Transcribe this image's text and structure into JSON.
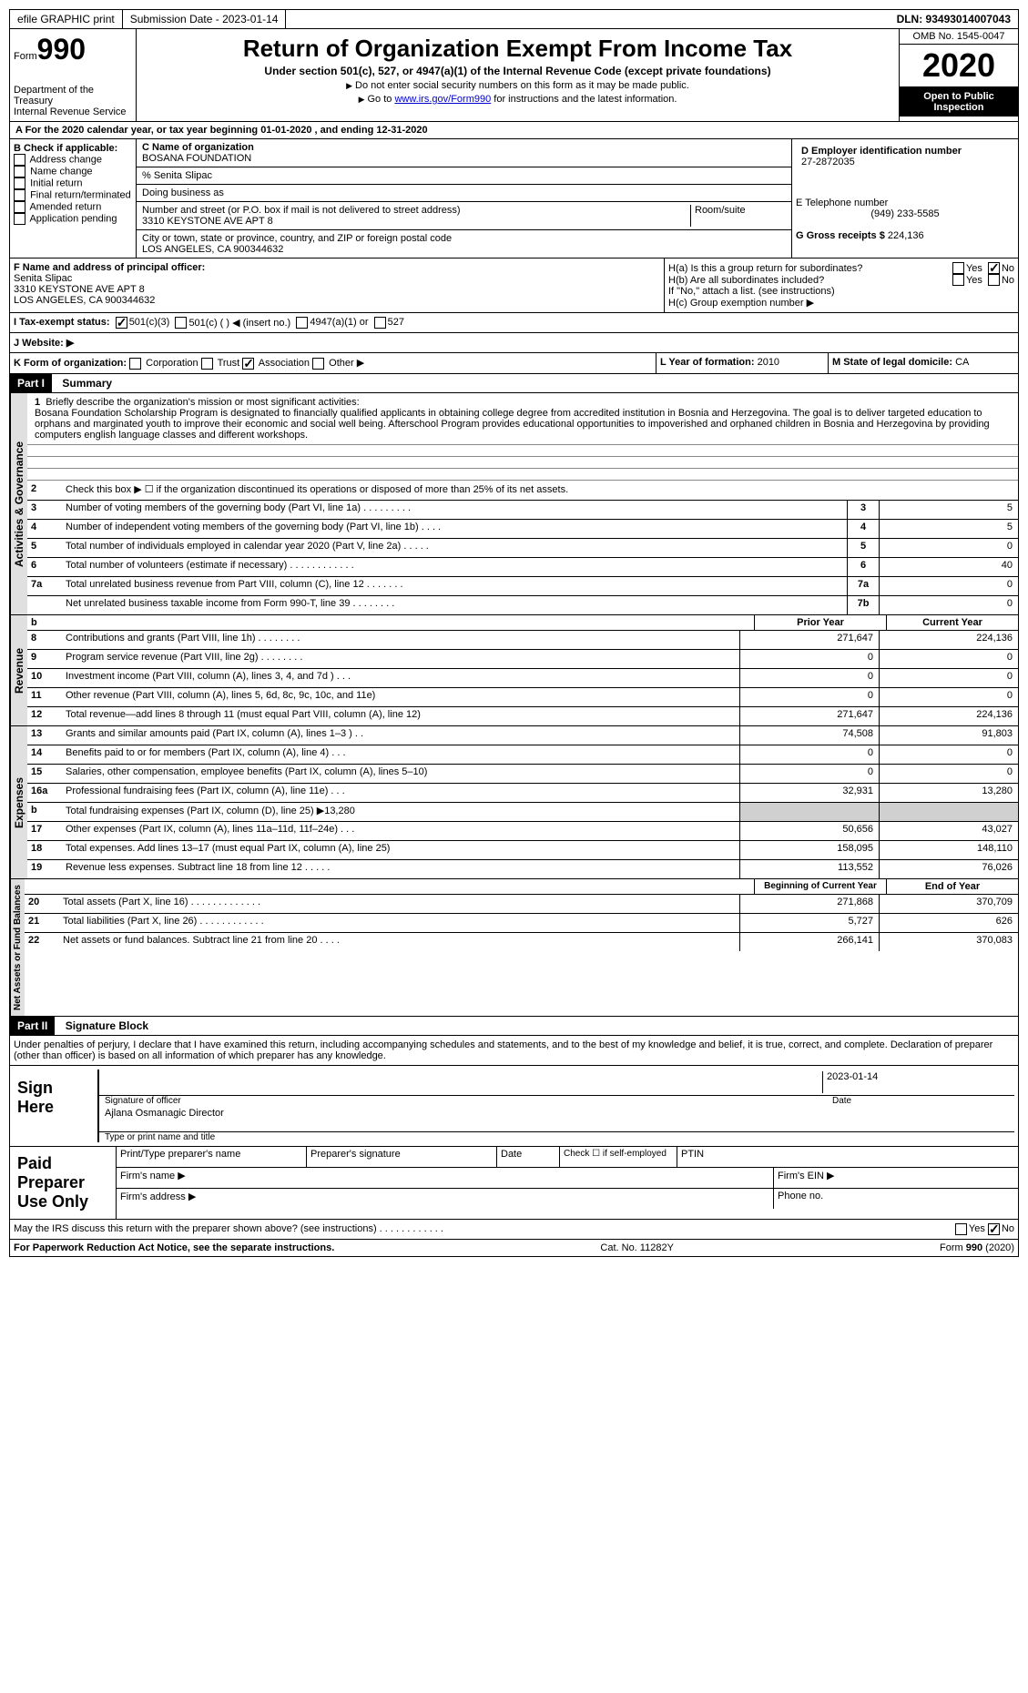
{
  "topbar": {
    "efile": "efile GRAPHIC print",
    "submission": "Submission Date - 2023-01-14",
    "dln": "DLN: 93493014007043"
  },
  "header": {
    "form_word": "Form",
    "form_num": "990",
    "dept": "Department of the Treasury\nInternal Revenue Service",
    "title": "Return of Organization Exempt From Income Tax",
    "subtitle": "Under section 501(c), 527, or 4947(a)(1) of the Internal Revenue Code (except private foundations)",
    "note1": "Do not enter social security numbers on this form as it may be made public.",
    "note2_pre": "Go to ",
    "note2_link": "www.irs.gov/Form990",
    "note2_post": " for instructions and the latest information.",
    "omb": "OMB No. 1545-0047",
    "year": "2020",
    "open": "Open to Public Inspection"
  },
  "sectionA": {
    "a_label": "A For the 2020 calendar year, or tax year beginning 01-01-2020   , and ending 12-31-2020",
    "b_label": "B Check if applicable:",
    "b_items": [
      "Address change",
      "Name change",
      "Initial return",
      "Final return/terminated",
      "Amended return",
      "Application pending"
    ],
    "c_label": "C Name of organization",
    "c_name": "BOSANA FOUNDATION",
    "c_care": "% Senita Slipac",
    "c_dba": "Doing business as",
    "c_street_label": "Number and street (or P.O. box if mail is not delivered to street address)",
    "c_street": "3310 KEYSTONE AVE APT 8",
    "c_room": "Room/suite",
    "c_city_label": "City or town, state or province, country, and ZIP or foreign postal code",
    "c_city": "LOS ANGELES, CA  900344632",
    "d_label": "D Employer identification number",
    "d_val": "27-2872035",
    "e_label": "E Telephone number",
    "e_val": "(949) 233-5585",
    "g_label": "G Gross receipts $",
    "g_val": "224,136",
    "f_label": "F Name and address of principal officer:",
    "f_name": "Senita Slipac",
    "f_addr1": "3310 KEYSTONE AVE APT 8",
    "f_addr2": "LOS ANGELES, CA  900344632",
    "ha": "H(a)  Is this a group return for subordinates?",
    "hb": "H(b)  Are all subordinates included?",
    "hb_note": "If \"No,\" attach a list. (see instructions)",
    "hc": "H(c)  Group exemption number ▶",
    "yes": "Yes",
    "no": "No",
    "i_label": "I   Tax-exempt status:",
    "i_501c3": "501(c)(3)",
    "i_501c": "501(c) (  ) ◀ (insert no.)",
    "i_4947": "4947(a)(1) or",
    "i_527": "527",
    "j_label": "J  Website: ▶",
    "k_label": "K Form of organization:",
    "k_corp": "Corporation",
    "k_trust": "Trust",
    "k_assoc": "Association",
    "k_other": "Other ▶",
    "l_label": "L Year of formation:",
    "l_val": "2010",
    "m_label": "M State of legal domicile:",
    "m_val": "CA"
  },
  "part1": {
    "label": "Part I",
    "title": "Summary",
    "q1_label": "1",
    "q1_text": "Briefly describe the organization's mission or most significant activities:",
    "mission": "Bosana Foundation Scholarship Program is designated to financially qualified applicants in obtaining college degree from accredited institution in Bosnia and Herzegovina. The goal is to deliver targeted education to orphans and marginated youth to improve their economic and social well being. Afterschool Program provides educational opportunities to impoverished and orphaned children in Bosnia and Herzegovina by providing computers english language classes and different workshops.",
    "q2": "Check this box ▶ ☐  if the organization discontinued its operations or disposed of more than 25% of its net assets.",
    "sections": {
      "gov": "Activities & Governance",
      "rev": "Revenue",
      "exp": "Expenses",
      "net": "Net Assets or Fund Balances"
    },
    "lines_gov": [
      {
        "n": "3",
        "d": "Number of voting members of the governing body (Part VI, line 1a)   .    .    .    .    .    .    .    .    .",
        "b": "3",
        "v": "5"
      },
      {
        "n": "4",
        "d": "Number of independent voting members of the governing body (Part VI, line 1b)    .    .    .    .",
        "b": "4",
        "v": "5"
      },
      {
        "n": "5",
        "d": "Total number of individuals employed in calendar year 2020 (Part V, line 2a)   .    .    .    .    .",
        "b": "5",
        "v": "0"
      },
      {
        "n": "6",
        "d": "Total number of volunteers (estimate if necessary)    .    .    .    .    .    .    .    .    .    .    .    .",
        "b": "6",
        "v": "40"
      },
      {
        "n": "7a",
        "d": "Total unrelated business revenue from Part VIII, column (C), line 12   .    .    .    .    .    .    .",
        "b": "7a",
        "v": "0"
      },
      {
        "n": "",
        "d": "Net unrelated business taxable income from Form 990-T, line 39    .    .    .    .    .    .    .    .",
        "b": "7b",
        "v": "0"
      }
    ],
    "prior": "Prior Year",
    "current": "Current Year",
    "lines_rev": [
      {
        "n": "8",
        "d": "Contributions and grants (Part VIII, line 1h)    .    .    .    .    .    .    .    .",
        "p": "271,647",
        "c": "224,136"
      },
      {
        "n": "9",
        "d": "Program service revenue (Part VIII, line 2g)    .    .    .    .    .    .    .    .",
        "p": "0",
        "c": "0"
      },
      {
        "n": "10",
        "d": "Investment income (Part VIII, column (A), lines 3, 4, and 7d )    .    .    .",
        "p": "0",
        "c": "0"
      },
      {
        "n": "11",
        "d": "Other revenue (Part VIII, column (A), lines 5, 6d, 8c, 9c, 10c, and 11e)",
        "p": "0",
        "c": "0"
      },
      {
        "n": "12",
        "d": "Total revenue—add lines 8 through 11 (must equal Part VIII, column (A), line 12)",
        "p": "271,647",
        "c": "224,136"
      }
    ],
    "lines_exp": [
      {
        "n": "13",
        "d": "Grants and similar amounts paid (Part IX, column (A), lines 1–3 )  .    .",
        "p": "74,508",
        "c": "91,803"
      },
      {
        "n": "14",
        "d": "Benefits paid to or for members (Part IX, column (A), line 4)    .    .    .",
        "p": "0",
        "c": "0"
      },
      {
        "n": "15",
        "d": "Salaries, other compensation, employee benefits (Part IX, column (A), lines 5–10)",
        "p": "0",
        "c": "0"
      },
      {
        "n": "16a",
        "d": "Professional fundraising fees (Part IX, column (A), line 11e)    .    .    .",
        "p": "32,931",
        "c": "13,280"
      },
      {
        "n": "b",
        "d": "Total fundraising expenses (Part IX, column (D), line 25) ▶13,280",
        "p": "",
        "c": "",
        "grey": true
      },
      {
        "n": "17",
        "d": "Other expenses (Part IX, column (A), lines 11a–11d, 11f–24e)    .    .    .",
        "p": "50,656",
        "c": "43,027"
      },
      {
        "n": "18",
        "d": "Total expenses. Add lines 13–17 (must equal Part IX, column (A), line 25)",
        "p": "158,095",
        "c": "148,110"
      },
      {
        "n": "19",
        "d": "Revenue less expenses. Subtract line 18 from line 12    .    .    .    .    .",
        "p": "113,552",
        "c": "76,026"
      }
    ],
    "begin": "Beginning of Current Year",
    "end": "End of Year",
    "lines_net": [
      {
        "n": "20",
        "d": "Total assets (Part X, line 16)  .    .    .    .    .    .    .    .    .    .    .    .    .",
        "p": "271,868",
        "c": "370,709"
      },
      {
        "n": "21",
        "d": "Total liabilities (Part X, line 26)    .    .    .    .    .    .    .    .    .    .    .    .",
        "p": "5,727",
        "c": "626"
      },
      {
        "n": "22",
        "d": "Net assets or fund balances. Subtract line 21 from line 20    .    .    .    .",
        "p": "266,141",
        "c": "370,083"
      }
    ]
  },
  "part2": {
    "label": "Part II",
    "title": "Signature Block",
    "declaration": "Under penalties of perjury, I declare that I have examined this return, including accompanying schedules and statements, and to the best of my knowledge and belief, it is true, correct, and complete. Declaration of preparer (other than officer) is based on all information of which preparer has any knowledge.",
    "sign_here": "Sign Here",
    "sig_officer": "Signature of officer",
    "sig_date": "Date",
    "sig_date_val": "2023-01-14",
    "sig_name": "Ajlana Osmanagic  Director",
    "sig_name_label": "Type or print name and title",
    "paid": "Paid Preparer Use Only",
    "prep_name": "Print/Type preparer's name",
    "prep_sig": "Preparer's signature",
    "prep_date": "Date",
    "prep_check": "Check ☐ if self-employed",
    "ptin": "PTIN",
    "firm_name": "Firm's name    ▶",
    "firm_ein": "Firm's EIN ▶",
    "firm_addr": "Firm's address ▶",
    "phone": "Phone no.",
    "discuss": "May the IRS discuss this return with the preparer shown above? (see instructions)   .    .    .    .    .    .    .    .    .    .    .    ."
  },
  "footer": {
    "pra": "For Paperwork Reduction Act Notice, see the separate instructions.",
    "cat": "Cat. No. 11282Y",
    "form": "Form 990 (2020)"
  }
}
